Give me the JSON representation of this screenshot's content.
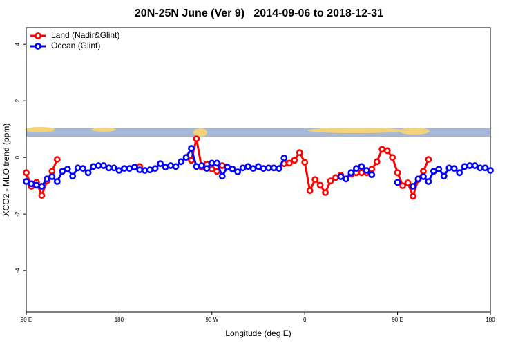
{
  "chart_data": {
    "type": "line",
    "title": "20N-25N June (Ver 9)   2014-09-06 to 2018-12-31",
    "x_label": "Longitude (deg E)",
    "y_label": "XCO2 - MLO trend (ppm)",
    "xlim": [
      90,
      540
    ],
    "ylim": [
      -5.46,
      4.59
    ],
    "xticks": [
      {
        "value": 90,
        "label": "90 E"
      },
      180,
      {
        "value": 270,
        "label": "90 W"
      },
      {
        "value": 360,
        "label": "0"
      },
      {
        "value": 450,
        "label": "90 E"
      },
      {
        "value": 540,
        "label": "180"
      }
    ],
    "yticks": [
      4,
      2,
      0,
      -2,
      -4
    ],
    "legend": "top-left",
    "x": [
      90,
      95,
      100,
      105,
      110,
      115,
      120,
      125,
      130,
      135,
      140,
      145,
      150,
      155,
      160,
      165,
      170,
      175,
      180,
      185,
      190,
      195,
      200,
      205,
      210,
      215,
      220,
      225,
      230,
      235,
      240,
      245,
      250,
      255,
      260,
      265,
      270,
      275,
      280,
      285,
      290,
      295,
      300,
      305,
      310,
      315,
      320,
      325,
      330,
      335,
      340,
      345,
      350,
      355,
      360,
      365,
      370,
      375,
      380,
      385,
      390,
      395,
      400,
      405,
      410,
      415,
      420,
      425,
      430,
      435,
      440,
      445,
      450,
      455,
      460,
      465,
      470,
      475,
      480,
      485,
      490,
      495,
      500,
      505,
      510,
      515,
      520,
      525,
      530,
      535,
      540
    ],
    "series": [
      {
        "name": "Land (Nadir&Glint)",
        "color": "#ff0000",
        "values": [
          -0.54,
          -1.02,
          -0.88,
          -1.34,
          -0.83,
          -0.49,
          -0.07,
          null,
          null,
          null,
          null,
          null,
          null,
          null,
          null,
          null,
          null,
          null,
          null,
          null,
          null,
          null,
          -0.32,
          null,
          null,
          null,
          null,
          null,
          null,
          null,
          null,
          null,
          -0.1,
          0.66,
          -0.34,
          -0.24,
          -0.41,
          -0.49,
          -0.29,
          null,
          null,
          null,
          null,
          null,
          null,
          null,
          null,
          null,
          null,
          null,
          -0.22,
          -0.2,
          -0.1,
          0.17,
          -0.17,
          -1.17,
          -0.78,
          -0.98,
          -1.24,
          -0.83,
          -0.71,
          -0.63,
          -0.76,
          -0.59,
          -0.54,
          -0.54,
          -0.54,
          -0.41,
          -0.15,
          0.29,
          0.24,
          0,
          -0.54,
          -1,
          -0.9,
          -1.37,
          -0.78,
          -0.49,
          -0.07,
          null,
          null,
          null,
          null,
          null,
          null,
          null,
          null,
          null,
          null,
          null,
          null
        ]
      },
      {
        "name": "Ocean (Glint)",
        "color": "#0000ff",
        "values": [
          -0.85,
          -0.93,
          -0.98,
          -1.02,
          -0.76,
          -0.68,
          -0.85,
          -0.49,
          -0.41,
          -0.66,
          -0.37,
          -0.39,
          -0.54,
          -0.32,
          -0.29,
          -0.29,
          -0.37,
          -0.37,
          -0.46,
          -0.39,
          -0.39,
          -0.34,
          -0.44,
          -0.46,
          -0.44,
          -0.39,
          -0.22,
          -0.34,
          -0.29,
          -0.32,
          -0.15,
          0,
          0.32,
          -0.32,
          -0.29,
          -0.39,
          -0.2,
          -0.2,
          -0.66,
          -0.34,
          -0.41,
          -0.51,
          -0.37,
          -0.32,
          -0.39,
          -0.32,
          -0.39,
          -0.37,
          -0.37,
          -0.39,
          -0.02,
          null,
          null,
          null,
          null,
          null,
          null,
          null,
          null,
          null,
          null,
          -0.68,
          -0.76,
          -0.54,
          -0.39,
          -0.32,
          -0.46,
          -0.61,
          null,
          null,
          null,
          null,
          -0.88,
          null,
          null,
          -1.02,
          -0.76,
          -0.68,
          -0.85,
          -0.49,
          -0.41,
          -0.66,
          -0.37,
          -0.39,
          -0.54,
          -0.32,
          -0.29,
          -0.29,
          -0.37,
          -0.37,
          -0.46
        ]
      }
    ]
  }
}
